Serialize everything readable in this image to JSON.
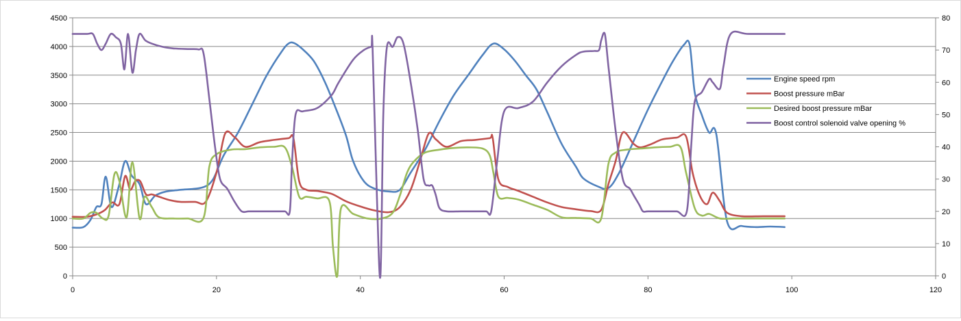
{
  "chart_data": {
    "type": "line",
    "title": "",
    "xlabel": "",
    "ylabel": "",
    "xlim": [
      0,
      120
    ],
    "x_ticks": [
      0,
      20,
      40,
      60,
      80,
      100,
      120
    ],
    "ylim": [
      0,
      4500
    ],
    "y_ticks": [
      0,
      500,
      1000,
      1500,
      2000,
      2500,
      3000,
      3500,
      4000,
      4500
    ],
    "y2lim": [
      0,
      80
    ],
    "y2_ticks": [
      0,
      10,
      20,
      30,
      40,
      50,
      60,
      70,
      80
    ],
    "grid": true,
    "legend_position": "right",
    "series": [
      {
        "name": "Engine speed rpm",
        "axis": "left",
        "color": "#4f81bd",
        "x": [
          0,
          1.5,
          2.5,
          3.3,
          4,
          4.6,
          5.4,
          6.4,
          7.3,
          8.2,
          9.3,
          10.2,
          11.5,
          13,
          15,
          18,
          19.5,
          21,
          23,
          25,
          27,
          29,
          30,
          30.8,
          32,
          33.5,
          35,
          36.5,
          38,
          39,
          40.5,
          42,
          44,
          45.5,
          47,
          49,
          51,
          53,
          55,
          57,
          58.5,
          60,
          61.5,
          63,
          64.5,
          66,
          68,
          70,
          71,
          73,
          74.5,
          76,
          78,
          80,
          82,
          83.5,
          85,
          85.8,
          86.5,
          87.5,
          88.5,
          89.5,
          91,
          93,
          95,
          97,
          99
        ],
        "values": [
          840,
          850,
          980,
          1200,
          1250,
          1730,
          1200,
          1550,
          2000,
          1750,
          1600,
          1250,
          1400,
          1470,
          1500,
          1540,
          1680,
          2100,
          2500,
          3000,
          3500,
          3900,
          4050,
          4060,
          3950,
          3750,
          3400,
          2950,
          2450,
          2000,
          1650,
          1520,
          1470,
          1500,
          1800,
          2200,
          2700,
          3150,
          3500,
          3850,
          4050,
          3950,
          3750,
          3500,
          3250,
          2850,
          2300,
          1900,
          1700,
          1560,
          1530,
          1800,
          2350,
          2900,
          3400,
          3750,
          4030,
          4030,
          3200,
          2800,
          2500,
          2470,
          950,
          870,
          850,
          860,
          850
        ]
      },
      {
        "name": "Boost pressure mBar",
        "axis": "left",
        "color": "#c0504d",
        "x": [
          0,
          2,
          3.5,
          4.5,
          5.5,
          6.5,
          7.3,
          8,
          8.7,
          9.4,
          10.2,
          11,
          12,
          13.5,
          15,
          17,
          18.5,
          20,
          21.2,
          22.5,
          24,
          26,
          28,
          30,
          30.7,
          31.5,
          32.5,
          34,
          36,
          38,
          40,
          42,
          44,
          45.5,
          47,
          48.3,
          49.5,
          50.5,
          52,
          54,
          56,
          58,
          58.4,
          59.2,
          60.5,
          62,
          64,
          66,
          68,
          70,
          72,
          73.5,
          74.5,
          75.5,
          76.5,
          78,
          79,
          80.5,
          82,
          84,
          85.3,
          86.2,
          87.2,
          88.2,
          89,
          90,
          91,
          93,
          96,
          99
        ],
        "values": [
          1030,
          1030,
          1080,
          1150,
          1280,
          1250,
          1740,
          1500,
          1650,
          1650,
          1420,
          1420,
          1380,
          1320,
          1290,
          1290,
          1290,
          1800,
          2480,
          2420,
          2250,
          2330,
          2370,
          2400,
          2400,
          1650,
          1500,
          1480,
          1430,
          1300,
          1210,
          1140,
          1110,
          1200,
          1500,
          2000,
          2480,
          2380,
          2250,
          2350,
          2370,
          2400,
          2410,
          1680,
          1550,
          1480,
          1380,
          1280,
          1200,
          1160,
          1130,
          1150,
          1600,
          2000,
          2500,
          2300,
          2240,
          2300,
          2380,
          2410,
          2430,
          1800,
          1400,
          1250,
          1450,
          1300,
          1100,
          1040,
          1040,
          1040
        ]
      },
      {
        "name": "Desired boost pressure mBar",
        "axis": "left",
        "color": "#9bbb59",
        "x": [
          0,
          1.5,
          2.5,
          3.3,
          4.2,
          5,
          5.8,
          6.5,
          7.5,
          8.3,
          9.3,
          10,
          11,
          12,
          14,
          16,
          18.2,
          19,
          20,
          22,
          24,
          26,
          28,
          29.5,
          30.5,
          31.5,
          32.5,
          34,
          35.7,
          36.2,
          36.8,
          37.3,
          39,
          41,
          43,
          44.5,
          45.5,
          46.5,
          47.5,
          49,
          51,
          53,
          55,
          57,
          58,
          58.5,
          59.2,
          60.5,
          62,
          64,
          66,
          68,
          70,
          72,
          73.5,
          74.5,
          75.5,
          77,
          79,
          81,
          83,
          84.5,
          85.3,
          86.5,
          87.5,
          88.5,
          90,
          92,
          95,
          99
        ],
        "values": [
          1000,
          1000,
          1100,
          1100,
          1000,
          1050,
          1770,
          1650,
          1020,
          1980,
          1000,
          1380,
          1200,
          1020,
          1000,
          1000,
          1010,
          1900,
          2120,
          2200,
          2210,
          2240,
          2250,
          2240,
          1900,
          1380,
          1380,
          1350,
          1300,
          500,
          0,
          1170,
          1080,
          1000,
          1000,
          1100,
          1400,
          1800,
          2000,
          2150,
          2200,
          2230,
          2240,
          2220,
          2100,
          1800,
          1380,
          1360,
          1330,
          1240,
          1150,
          1020,
          1010,
          1000,
          1000,
          1950,
          2150,
          2200,
          2220,
          2240,
          2250,
          2250,
          1800,
          1180,
          1050,
          1080,
          1000,
          1000,
          1000,
          1000
        ]
      },
      {
        "name": "Boost control solenoid valve opening %",
        "axis": "right",
        "color": "#8064a2",
        "x": [
          0,
          2,
          2.8,
          3.4,
          4,
          4.6,
          5.3,
          6,
          6.7,
          7.2,
          7.7,
          8.3,
          8.8,
          9.3,
          10.1,
          11,
          12.5,
          14,
          16,
          17.5,
          18.2,
          19,
          19.8,
          20.5,
          21.5,
          22.5,
          23.5,
          24.5,
          26,
          28,
          29.5,
          30.2,
          30.5,
          31,
          32,
          34,
          36,
          37,
          39,
          40.5,
          41.5,
          41.7,
          42.3,
          42.8,
          43.2,
          43.7,
          44.5,
          45.2,
          46,
          47,
          48,
          48.8,
          49.5,
          50,
          50.5,
          51,
          52,
          54,
          56,
          57.5,
          58.2,
          59,
          60,
          62,
          64,
          66,
          68,
          70,
          71,
          72.5,
          73.2,
          73.5,
          74,
          74.5,
          75.5,
          76.5,
          77.5,
          78,
          78.8,
          79.3,
          80,
          82,
          84,
          85.4,
          86,
          86.5,
          87.5,
          88.5,
          89,
          90,
          90.5,
          91.5,
          94,
          99
        ],
        "values": [
          75,
          75,
          75,
          72,
          70,
          72,
          75,
          74,
          72,
          64,
          75,
          63,
          70,
          75,
          73,
          72,
          71,
          70.5,
          70.3,
          70.2,
          69,
          55,
          40,
          30,
          27,
          23,
          20,
          20,
          20,
          20,
          20,
          20,
          35,
          50,
          51,
          52,
          56,
          60,
          67,
          70,
          71,
          71,
          25,
          0,
          50,
          71,
          71,
          74,
          72,
          60,
          45,
          30,
          28,
          28,
          25,
          21,
          20,
          20,
          20,
          20,
          20,
          35,
          51,
          52,
          54,
          60,
          65,
          68.5,
          69.5,
          69.7,
          70,
          73,
          75,
          65,
          45,
          30,
          27,
          25,
          22,
          20,
          20,
          20,
          20,
          20,
          40,
          54,
          57,
          61,
          60,
          58,
          65,
          75,
          75,
          75
        ]
      }
    ]
  }
}
